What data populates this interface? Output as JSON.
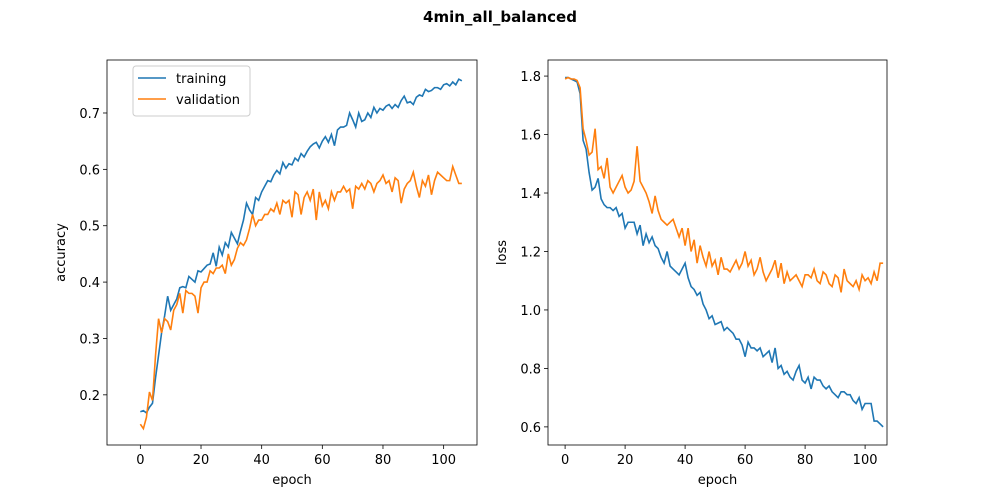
{
  "title": "4min_all_balanced",
  "chart_data": [
    {
      "type": "line",
      "xlabel": "epoch",
      "ylabel": "accuracy",
      "legend": "upper left",
      "xlim": [
        -11,
        111
      ],
      "xticks": [
        0,
        20,
        40,
        60,
        80,
        100
      ],
      "ylim": [
        0.111,
        0.794
      ],
      "yticks": [
        0.2,
        0.3,
        0.4,
        0.5,
        0.6,
        0.7
      ],
      "x": [
        0,
        1,
        2,
        3,
        4,
        5,
        6,
        7,
        8,
        9,
        10,
        11,
        12,
        13,
        14,
        15,
        16,
        17,
        18,
        19,
        20,
        21,
        22,
        23,
        24,
        25,
        26,
        27,
        28,
        29,
        30,
        31,
        32,
        33,
        34,
        35,
        36,
        37,
        38,
        39,
        40,
        41,
        42,
        43,
        44,
        45,
        46,
        47,
        48,
        49,
        50,
        51,
        52,
        53,
        54,
        55,
        56,
        57,
        58,
        59,
        60,
        61,
        62,
        63,
        64,
        65,
        66,
        67,
        68,
        69,
        70,
        71,
        72,
        73,
        74,
        75,
        76,
        77,
        78,
        79,
        80,
        81,
        82,
        83,
        84,
        85,
        86,
        87,
        88,
        89,
        90,
        91,
        92,
        93,
        94,
        95,
        96,
        97,
        98,
        99,
        100,
        101,
        102,
        103,
        104,
        105,
        106
      ],
      "series": [
        {
          "name": "training",
          "color": "#1f77b4",
          "values": [
            0.17,
            0.172,
            0.168,
            0.178,
            0.185,
            0.23,
            0.27,
            0.31,
            0.34,
            0.375,
            0.35,
            0.36,
            0.37,
            0.39,
            0.392,
            0.39,
            0.41,
            0.405,
            0.4,
            0.42,
            0.418,
            0.424,
            0.43,
            0.432,
            0.452,
            0.428,
            0.462,
            0.448,
            0.47,
            0.462,
            0.488,
            0.478,
            0.468,
            0.49,
            0.51,
            0.54,
            0.528,
            0.52,
            0.55,
            0.545,
            0.56,
            0.57,
            0.58,
            0.578,
            0.59,
            0.598,
            0.592,
            0.612,
            0.602,
            0.61,
            0.608,
            0.62,
            0.615,
            0.628,
            0.622,
            0.632,
            0.64,
            0.645,
            0.648,
            0.638,
            0.65,
            0.658,
            0.648,
            0.662,
            0.642,
            0.67,
            0.675,
            0.675,
            0.678,
            0.7,
            0.688,
            0.675,
            0.7,
            0.685,
            0.688,
            0.7,
            0.692,
            0.71,
            0.7,
            0.708,
            0.705,
            0.712,
            0.715,
            0.708,
            0.715,
            0.71,
            0.722,
            0.73,
            0.718,
            0.72,
            0.715,
            0.728,
            0.732,
            0.73,
            0.742,
            0.738,
            0.74,
            0.745,
            0.745,
            0.742,
            0.75,
            0.752,
            0.748,
            0.755,
            0.75,
            0.76,
            0.757
          ]
        },
        {
          "name": "validation",
          "color": "#ff7f0e",
          "values": [
            0.148,
            0.14,
            0.16,
            0.205,
            0.19,
            0.27,
            0.335,
            0.31,
            0.335,
            0.33,
            0.315,
            0.35,
            0.36,
            0.38,
            0.345,
            0.385,
            0.38,
            0.38,
            0.375,
            0.345,
            0.39,
            0.4,
            0.4,
            0.42,
            0.415,
            0.425,
            0.425,
            0.43,
            0.415,
            0.45,
            0.43,
            0.44,
            0.46,
            0.47,
            0.465,
            0.475,
            0.495,
            0.52,
            0.5,
            0.51,
            0.51,
            0.52,
            0.52,
            0.53,
            0.525,
            0.54,
            0.52,
            0.545,
            0.54,
            0.545,
            0.515,
            0.56,
            0.555,
            0.52,
            0.55,
            0.56,
            0.545,
            0.565,
            0.51,
            0.56,
            0.535,
            0.545,
            0.53,
            0.56,
            0.545,
            0.56,
            0.56,
            0.57,
            0.56,
            0.565,
            0.53,
            0.57,
            0.565,
            0.575,
            0.565,
            0.58,
            0.575,
            0.56,
            0.575,
            0.58,
            0.59,
            0.575,
            0.58,
            0.56,
            0.585,
            0.58,
            0.54,
            0.565,
            0.575,
            0.58,
            0.595,
            0.57,
            0.55,
            0.58,
            0.57,
            0.59,
            0.555,
            0.58,
            0.595,
            0.59,
            0.585,
            0.58,
            0.58,
            0.605,
            0.59,
            0.575,
            0.575
          ]
        }
      ]
    },
    {
      "type": "line",
      "xlabel": "epoch",
      "ylabel": "loss",
      "xlim": [
        -5.7,
        107.3
      ],
      "xticks": [
        0,
        20,
        40,
        60,
        80,
        100
      ],
      "ylim": [
        0.538,
        1.855
      ],
      "yticks": [
        0.6,
        0.8,
        {
          "value": 1,
          "label": "1.0"
        },
        1.2,
        1.4,
        1.6,
        1.8
      ],
      "x": [
        0,
        1,
        2,
        3,
        4,
        5,
        6,
        7,
        8,
        9,
        10,
        11,
        12,
        13,
        14,
        15,
        16,
        17,
        18,
        19,
        20,
        21,
        22,
        23,
        24,
        25,
        26,
        27,
        28,
        29,
        30,
        31,
        32,
        33,
        34,
        35,
        36,
        37,
        38,
        39,
        40,
        41,
        42,
        43,
        44,
        45,
        46,
        47,
        48,
        49,
        50,
        51,
        52,
        53,
        54,
        55,
        56,
        57,
        58,
        59,
        60,
        61,
        62,
        63,
        64,
        65,
        66,
        67,
        68,
        69,
        70,
        71,
        72,
        73,
        74,
        75,
        76,
        77,
        78,
        79,
        80,
        81,
        82,
        83,
        84,
        85,
        86,
        87,
        88,
        89,
        90,
        91,
        92,
        93,
        94,
        95,
        96,
        97,
        98,
        99,
        100,
        101,
        102,
        103,
        104,
        105,
        106
      ],
      "series": [
        {
          "color": "#1f77b4",
          "values": [
            1.795,
            1.795,
            1.79,
            1.785,
            1.78,
            1.74,
            1.58,
            1.55,
            1.47,
            1.41,
            1.42,
            1.45,
            1.38,
            1.36,
            1.35,
            1.35,
            1.34,
            1.35,
            1.32,
            1.33,
            1.28,
            1.3,
            1.3,
            1.3,
            1.26,
            1.29,
            1.22,
            1.26,
            1.23,
            1.25,
            1.22,
            1.21,
            1.18,
            1.16,
            1.2,
            1.15,
            1.14,
            1.13,
            1.12,
            1.14,
            1.16,
            1.11,
            1.08,
            1.07,
            1.05,
            1.06,
            1.02,
            1.0,
            0.97,
            0.98,
            0.95,
            0.955,
            0.96,
            0.93,
            0.94,
            0.93,
            0.92,
            0.9,
            0.9,
            0.88,
            0.84,
            0.89,
            0.87,
            0.87,
            0.86,
            0.87,
            0.84,
            0.85,
            0.86,
            0.82,
            0.87,
            0.8,
            0.81,
            0.78,
            0.79,
            0.77,
            0.76,
            0.79,
            0.81,
            0.76,
            0.75,
            0.77,
            0.73,
            0.77,
            0.76,
            0.76,
            0.74,
            0.73,
            0.74,
            0.72,
            0.71,
            0.7,
            0.72,
            0.72,
            0.71,
            0.71,
            0.69,
            0.68,
            0.7,
            0.66,
            0.68,
            0.68,
            0.68,
            0.62,
            0.62,
            0.61,
            0.6
          ]
        },
        {
          "color": "#ff7f0e",
          "values": [
            1.79,
            1.795,
            1.79,
            1.79,
            1.785,
            1.76,
            1.62,
            1.58,
            1.53,
            1.54,
            1.62,
            1.48,
            1.49,
            1.45,
            1.52,
            1.42,
            1.4,
            1.42,
            1.44,
            1.46,
            1.42,
            1.4,
            1.41,
            1.44,
            1.56,
            1.44,
            1.42,
            1.4,
            1.37,
            1.33,
            1.39,
            1.34,
            1.31,
            1.3,
            1.29,
            1.3,
            1.31,
            1.28,
            1.25,
            1.28,
            1.22,
            1.28,
            1.2,
            1.24,
            1.16,
            1.22,
            1.18,
            1.15,
            1.2,
            1.15,
            1.17,
            1.12,
            1.18,
            1.14,
            1.14,
            1.13,
            1.15,
            1.17,
            1.14,
            1.16,
            1.2,
            1.15,
            1.17,
            1.12,
            1.14,
            1.18,
            1.13,
            1.1,
            1.12,
            1.14,
            1.17,
            1.11,
            1.16,
            1.09,
            1.13,
            1.1,
            1.11,
            1.12,
            1.1,
            1.08,
            1.12,
            1.12,
            1.11,
            1.14,
            1.1,
            1.09,
            1.13,
            1.12,
            1.09,
            1.08,
            1.12,
            1.11,
            1.06,
            1.14,
            1.1,
            1.09,
            1.08,
            1.1,
            1.07,
            1.12,
            1.1,
            1.11,
            1.09,
            1.13,
            1.1,
            1.16,
            1.16
          ]
        }
      ]
    }
  ]
}
